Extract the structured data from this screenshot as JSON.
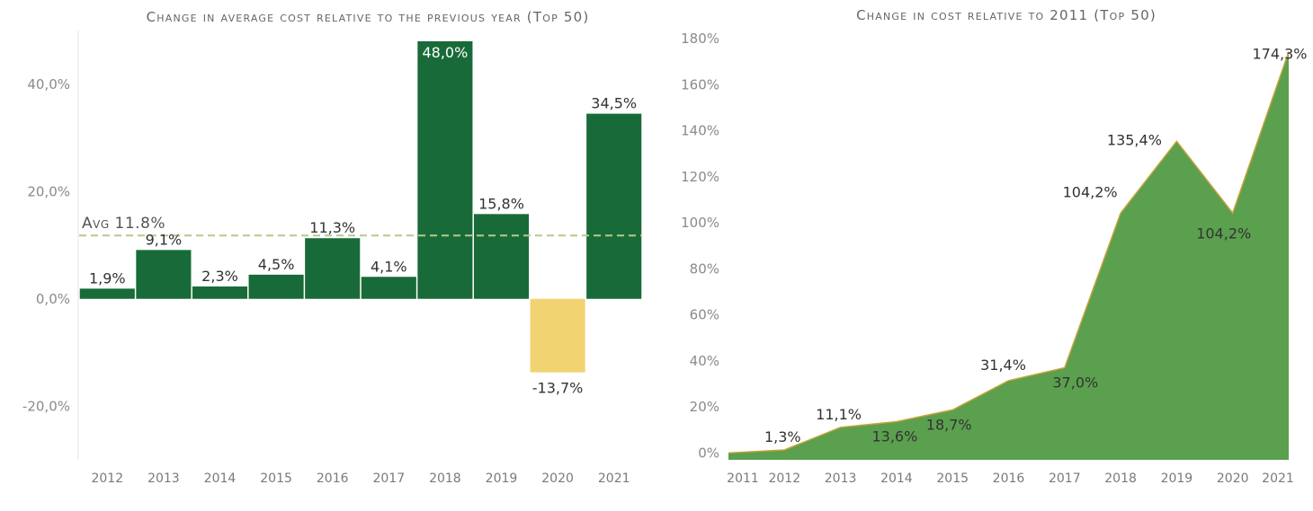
{
  "colors": {
    "bar_positive": "#186b38",
    "bar_negative": "#f2d372",
    "avg_line": "#b7c98b",
    "area_fill": "#5aa04e",
    "area_stroke": "#c9a23a"
  },
  "chart_data": [
    {
      "type": "bar",
      "title": "Change in average cost relative to the previous year (Top 50)",
      "categories": [
        "2012",
        "2013",
        "2014",
        "2015",
        "2016",
        "2017",
        "2018",
        "2019",
        "2020",
        "2021"
      ],
      "values": [
        1.9,
        9.1,
        2.3,
        4.5,
        11.3,
        4.1,
        48.0,
        15.8,
        -13.7,
        34.5
      ],
      "data_labels": [
        "1,9%",
        "9,1%",
        "2,3%",
        "4,5%",
        "11,3%",
        "4,1%",
        "48,0%",
        "15,8%",
        "-13,7%",
        "34,5%"
      ],
      "ylim": [
        -30,
        50
      ],
      "yticks": [
        -20,
        0,
        20,
        40
      ],
      "ytick_labels": [
        "-20,0%",
        "0,0%",
        "20,0%",
        "40,0%"
      ],
      "reference_line": {
        "value": 11.8,
        "label": "Avg 11.8%"
      },
      "grid": false,
      "xlabel": "",
      "ylabel": ""
    },
    {
      "type": "area",
      "title": "Change in cost relative to 2011 (Top 50)",
      "categories": [
        "2011",
        "2012",
        "2013",
        "2014",
        "2015",
        "2016",
        "2017",
        "2018",
        "2019",
        "2020",
        "2021"
      ],
      "values": [
        0,
        1.3,
        11.1,
        13.6,
        18.7,
        31.4,
        37.0,
        104.2,
        135.4,
        104.2,
        174.3
      ],
      "data_labels": [
        "",
        "1,3%",
        "11,1%",
        "13,6%",
        "18,7%",
        "31,4%",
        "37,0%",
        "104,2%",
        "135,4%",
        "104,2%",
        "174,3%"
      ],
      "ylim": [
        -3,
        180
      ],
      "yticks": [
        0,
        20,
        40,
        60,
        80,
        100,
        120,
        140,
        160,
        180
      ],
      "ytick_labels": [
        "0%",
        "20%",
        "40%",
        "60%",
        "80%",
        "100%",
        "120%",
        "140%",
        "160%",
        "180%"
      ],
      "grid": false,
      "xlabel": "",
      "ylabel": ""
    }
  ]
}
